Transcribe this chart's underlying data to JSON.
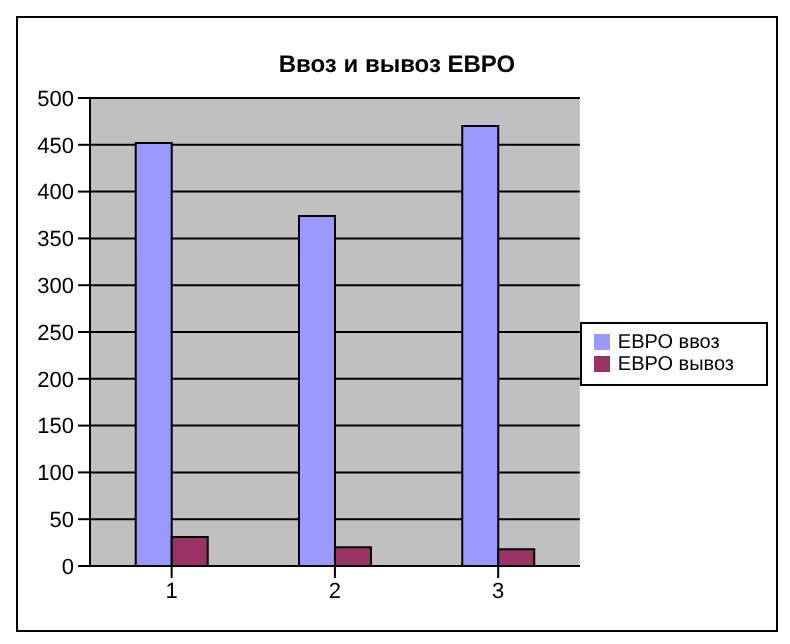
{
  "chart_data": {
    "type": "bar",
    "title": "Ввоз и вывоз ЕВРО",
    "categories": [
      "1",
      "2",
      "3"
    ],
    "series": [
      {
        "name": "ЕВРО ввоз",
        "color": "#9999ff",
        "values": [
          452,
          374,
          470
        ]
      },
      {
        "name": "ЕВРО вывоз",
        "color": "#993366",
        "values": [
          31,
          20,
          18
        ]
      }
    ],
    "ylim": [
      0,
      500
    ],
    "yticks": [
      0,
      50,
      100,
      150,
      200,
      250,
      300,
      350,
      400,
      450,
      500
    ],
    "grid": "y",
    "legend": "right"
  }
}
